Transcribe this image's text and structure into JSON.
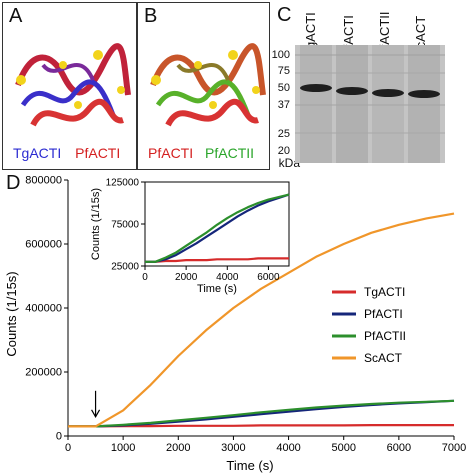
{
  "panels": {
    "a": {
      "letter": "A",
      "legend": [
        {
          "text": "TgACTI",
          "color": "#2b2bd1"
        },
        {
          "text": "PfACTI",
          "color": "#d41f1f"
        }
      ]
    },
    "b": {
      "letter": "B",
      "legend": [
        {
          "text": "PfACTI",
          "color": "#d41f1f"
        },
        {
          "text": "PfACTII",
          "color": "#2aa52a"
        }
      ]
    },
    "c": {
      "letter": "C",
      "lanes": [
        "TgACTI",
        "PfACTI",
        "PfACTII",
        "ScACT"
      ],
      "markers": [
        "100",
        "75",
        "50",
        "37",
        "25",
        "20"
      ],
      "unit": "kDa"
    },
    "d": {
      "letter": "D"
    }
  },
  "colors": {
    "TgACTI": "#d62b2b",
    "PfACTI": "#15267a",
    "PfACTII": "#2c8f2c",
    "ScACT": "#f0962a"
  },
  "chart_data": [
    {
      "type": "line",
      "xlabel": "Time (s)",
      "ylabel": "Counts (1/15s)",
      "xlim": [
        0,
        7000
      ],
      "ylim": [
        0,
        800000
      ],
      "xticks": [
        "0",
        "1000",
        "2000",
        "3000",
        "4000",
        "5000",
        "6000",
        "7000"
      ],
      "yticks": [
        "0",
        "200000",
        "400000",
        "600000",
        "800000"
      ],
      "legend_position": "right",
      "annotation": {
        "type": "arrow",
        "x": 500
      },
      "x": [
        0,
        500,
        1000,
        1500,
        2000,
        2500,
        3000,
        3500,
        4000,
        4500,
        5000,
        5500,
        6000,
        6500,
        7000
      ],
      "series": [
        {
          "name": "TgACTI",
          "values": [
            30000,
            30000,
            31000,
            31000,
            32000,
            32000,
            32000,
            33000,
            33000,
            33000,
            33000,
            34000,
            34000,
            34000,
            34000
          ]
        },
        {
          "name": "PfACTI",
          "values": [
            30000,
            30000,
            33000,
            38000,
            45000,
            52000,
            60000,
            68000,
            76000,
            84000,
            91000,
            97000,
            102000,
            106000,
            110000
          ]
        },
        {
          "name": "PfACTII",
          "values": [
            30000,
            30000,
            35000,
            41000,
            49000,
            57000,
            65000,
            74000,
            82000,
            89000,
            95000,
            100000,
            104000,
            107000,
            110000
          ]
        },
        {
          "name": "ScACT",
          "values": [
            30000,
            30000,
            80000,
            160000,
            250000,
            330000,
            400000,
            460000,
            510000,
            560000,
            600000,
            635000,
            660000,
            680000,
            695000
          ]
        }
      ]
    },
    {
      "type": "line",
      "xlabel": "Time (s)",
      "ylabel": "Counts (1/15s)",
      "xlim": [
        0,
        7000
      ],
      "ylim": [
        25000,
        125000
      ],
      "xticks": [
        "0",
        "2000",
        "4000",
        "6000"
      ],
      "yticks": [
        "25000",
        "75000",
        "125000"
      ],
      "x": [
        0,
        500,
        1000,
        1500,
        2000,
        2500,
        3000,
        3500,
        4000,
        4500,
        5000,
        5500,
        6000,
        6500,
        7000
      ],
      "series": [
        {
          "name": "TgACTI",
          "values": [
            30000,
            30000,
            31000,
            31000,
            32000,
            32000,
            32000,
            33000,
            33000,
            33000,
            33000,
            34000,
            34000,
            34000,
            34000
          ]
        },
        {
          "name": "PfACTI",
          "values": [
            30000,
            30000,
            33000,
            38000,
            45000,
            52000,
            60000,
            68000,
            76000,
            84000,
            91000,
            97000,
            102000,
            106000,
            110000
          ]
        },
        {
          "name": "PfACTII",
          "values": [
            30000,
            30000,
            35000,
            41000,
            49000,
            57000,
            65000,
            74000,
            82000,
            89000,
            95000,
            100000,
            104000,
            107000,
            110000
          ]
        }
      ]
    }
  ]
}
